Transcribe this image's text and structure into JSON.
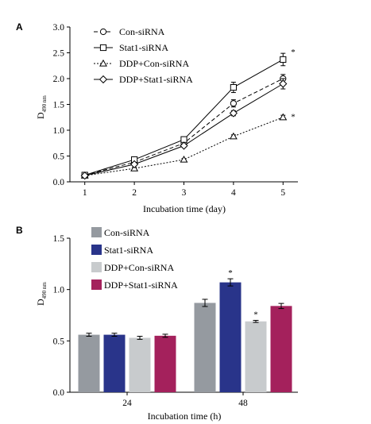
{
  "chart_data": [
    {
      "panel": "A",
      "type": "line",
      "ylabel_main": "D",
      "ylabel_sub": "490 nm",
      "xlabel": "Incubation time (day)",
      "x": [
        1,
        2,
        3,
        4,
        5
      ],
      "ylim": [
        0,
        3.0
      ],
      "yticks": [
        "0.0",
        "0.5",
        "1.0",
        "1.5",
        "2.0",
        "2.5",
        "3.0"
      ],
      "series": [
        {
          "name": "Con-siRNA",
          "marker": "circle",
          "line": "dashed",
          "values": [
            0.13,
            0.38,
            0.75,
            1.52,
            2.0
          ],
          "err": [
            0.02,
            0.03,
            0.04,
            0.07,
            0.08
          ]
        },
        {
          "name": "Stat1-siRNA",
          "marker": "square",
          "line": "solid",
          "values": [
            0.13,
            0.43,
            0.82,
            1.83,
            2.37
          ],
          "err": [
            0.02,
            0.03,
            0.05,
            0.1,
            0.12
          ]
        },
        {
          "name": "DDP+Con-siRNA",
          "marker": "triangle",
          "line": "dotted",
          "values": [
            0.12,
            0.26,
            0.43,
            0.88,
            1.25
          ],
          "err": [
            0.01,
            0.02,
            0.02,
            0.03,
            0.04
          ]
        },
        {
          "name": "DDP+Stat1-siRNA",
          "marker": "diamond",
          "line": "solid",
          "values": [
            0.12,
            0.34,
            0.7,
            1.33,
            1.9
          ],
          "err": [
            0.01,
            0.02,
            0.03,
            0.05,
            0.1
          ]
        }
      ],
      "annotations": [
        {
          "text": "*",
          "x": 5,
          "y": 2.52
        },
        {
          "text": "*",
          "x": 5,
          "y": 1.27
        }
      ]
    },
    {
      "panel": "B",
      "type": "bar",
      "ylabel_main": "D",
      "ylabel_sub": "490 nm",
      "xlabel": "Incubation time (h)",
      "categories": [
        "24",
        "48"
      ],
      "ylim": [
        0,
        1.5
      ],
      "yticks": [
        "0.0",
        "0.5",
        "1.0",
        "1.5"
      ],
      "series": [
        {
          "name": "Con-siRNA",
          "color": "#959aa0",
          "values": [
            0.56,
            0.87
          ],
          "err": [
            0.015,
            0.035
          ]
        },
        {
          "name": "Stat1-siRNA",
          "color": "#29348a",
          "values": [
            0.56,
            1.07
          ],
          "err": [
            0.015,
            0.035
          ]
        },
        {
          "name": "DDP+Con-siRNA",
          "color": "#c8cbcd",
          "values": [
            0.53,
            0.69
          ],
          "err": [
            0.015,
            0.01
          ]
        },
        {
          "name": "DDP+Stat1-siRNA",
          "color": "#a4215c",
          "values": [
            0.55,
            0.84
          ],
          "err": [
            0.015,
            0.025
          ]
        }
      ],
      "annotations": [
        {
          "text": "*",
          "category": "48",
          "series": 1
        },
        {
          "text": "*",
          "category": "48",
          "series": 2
        }
      ]
    }
  ]
}
